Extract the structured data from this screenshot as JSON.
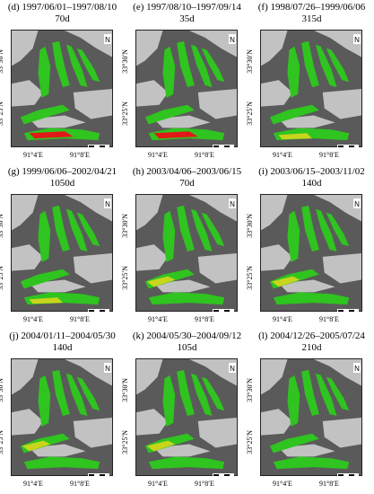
{
  "panels": [
    {
      "caption": "(d) 1997/06/01–1997/08/10",
      "duration": "70d"
    },
    {
      "caption": "(e) 1997/08/10–1997/09/14",
      "duration": "35d"
    },
    {
      "caption": "(f) 1998/07/26–1999/06/06",
      "duration": "315d"
    },
    {
      "caption": "(g) 1999/06/06–2002/04/21",
      "duration": "1050d"
    },
    {
      "caption": "(h) 2003/04/06–2003/06/15",
      "duration": "70d"
    },
    {
      "caption": "(i) 2003/06/15–2003/11/02",
      "duration": "140d"
    },
    {
      "caption": "(j) 2004/01/11–2004/05/30",
      "duration": "140d"
    },
    {
      "caption": "(k) 2004/05/30–2004/09/12",
      "duration": "105d"
    },
    {
      "caption": "(l) 2004/12/26–2005/07/24",
      "duration": "210d"
    }
  ],
  "axes": {
    "lat_top": "33°30′N",
    "lat_bottom": "33°25′N",
    "lon_left": "91°4′E",
    "lon_right": "91°8′E"
  },
  "map": {
    "north_arrow": "N",
    "scale_label": "Km",
    "colors": {
      "stable": "#2fc41f",
      "moderate": "#c9d51c",
      "fast": "#e11818",
      "background_dark": "#5a5a5a",
      "background_light": "#e6e6e6"
    }
  }
}
